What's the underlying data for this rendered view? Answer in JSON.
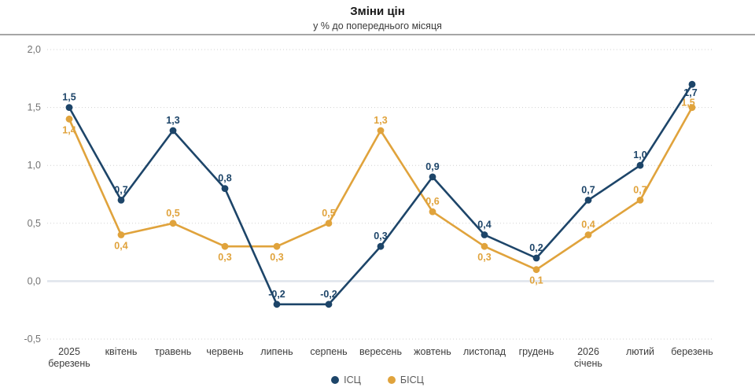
{
  "chart_data": {
    "type": "line",
    "title": "Зміни цін",
    "subtitle": "у % до попереднього місяця",
    "ylabel": "",
    "ylim": [
      -0.5,
      2.0
    ],
    "yticks": [
      2.0,
      1.5,
      1.0,
      0.5,
      0.0,
      -0.5
    ],
    "grid": "horizontal-dotted",
    "legend_position": "bottom",
    "decimal_separator": ",",
    "categories": [
      [
        "2025",
        "березень"
      ],
      [
        "квітень"
      ],
      [
        "травень"
      ],
      [
        "червень"
      ],
      [
        "липень"
      ],
      [
        "серпень"
      ],
      [
        "вересень"
      ],
      [
        "жовтень"
      ],
      [
        "листопад"
      ],
      [
        "грудень"
      ],
      [
        "2026",
        "січень"
      ],
      [
        "лютий"
      ],
      [
        "березень"
      ]
    ],
    "series": [
      {
        "name": "ІСЦ",
        "color": "#1d4569",
        "values": [
          1.5,
          0.7,
          1.3,
          0.8,
          -0.2,
          -0.2,
          0.3,
          0.9,
          0.4,
          0.2,
          0.7,
          1.0,
          1.7
        ],
        "label_positions": [
          "above",
          "above",
          "above",
          "above",
          "above",
          "above",
          "above",
          "above",
          "above",
          "above",
          "above",
          "above",
          "left-below"
        ]
      },
      {
        "name": "БІСЦ",
        "color": "#e0a33c",
        "values": [
          1.4,
          0.4,
          0.5,
          0.3,
          0.3,
          0.5,
          1.3,
          0.6,
          0.3,
          0.1,
          0.4,
          0.7,
          1.5
        ],
        "label_positions": [
          "below",
          "below",
          "above",
          "below",
          "below",
          "above",
          "above",
          "above",
          "below",
          "below",
          "above",
          "above",
          "left-above"
        ]
      }
    ]
  }
}
